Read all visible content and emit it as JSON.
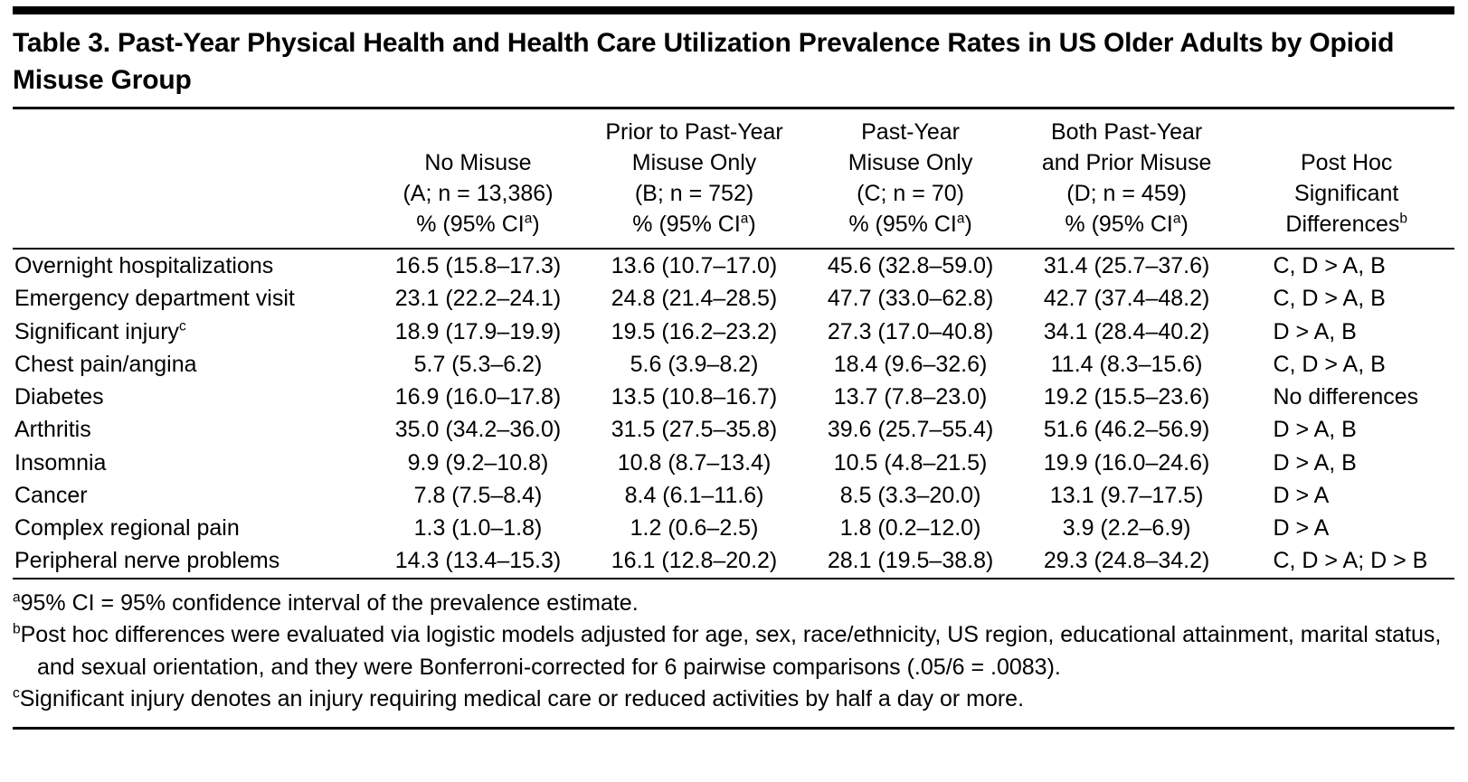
{
  "page": {
    "title": "Table 3. Past-Year Physical Health and Health Care Utilization Prevalence Rates in US Older Adults by Opioid Misuse Group"
  },
  "table": {
    "columns": [
      {
        "lines": [
          "No Misuse",
          "(A; n = 13,386)"
        ],
        "last_line": {
          "text": "% (95% CI",
          "sup": "a",
          "suffix": ")"
        }
      },
      {
        "lines": [
          "Prior to Past-Year",
          "Misuse Only",
          "(B; n = 752)"
        ],
        "last_line": {
          "text": "% (95% CI",
          "sup": "a",
          "suffix": ")"
        }
      },
      {
        "lines": [
          "Past-Year",
          "Misuse Only",
          "(C; n = 70)"
        ],
        "last_line": {
          "text": "% (95% CI",
          "sup": "a",
          "suffix": ")"
        }
      },
      {
        "lines": [
          "Both Past-Year",
          "and Prior Misuse",
          "(D; n = 459)"
        ],
        "last_line": {
          "text": "% (95% CI",
          "sup": "a",
          "suffix": ")"
        }
      },
      {
        "lines": [
          "Post Hoc",
          "Significant"
        ],
        "last_line": {
          "text": "Differences",
          "sup": "b",
          "suffix": ""
        }
      }
    ],
    "rows": [
      {
        "condition": "Overnight hospitalizations",
        "values": [
          "16.5 (15.8–17.3)",
          "13.6 (10.7–17.0)",
          "45.6 (32.8–59.0)",
          "31.4 (25.7–37.6)"
        ],
        "post_hoc": "C, D > A, B"
      },
      {
        "condition": "Emergency department visit",
        "values": [
          "23.1 (22.2–24.1)",
          "24.8 (21.4–28.5)",
          "47.7 (33.0–62.8)",
          "42.7 (37.4–48.2)"
        ],
        "post_hoc": "C, D > A, B"
      },
      {
        "condition": "Significant injury",
        "condition_sup": "c",
        "values": [
          "18.9 (17.9–19.9)",
          "19.5 (16.2–23.2)",
          "27.3 (17.0–40.8)",
          "34.1 (28.4–40.2)"
        ],
        "post_hoc": "D > A, B"
      },
      {
        "condition": "Chest pain/angina",
        "values": [
          "5.7 (5.3–6.2)",
          "5.6 (3.9–8.2)",
          "18.4 (9.6–32.6)",
          "11.4 (8.3–15.6)"
        ],
        "post_hoc": "C, D > A, B"
      },
      {
        "condition": "Diabetes",
        "values": [
          "16.9 (16.0–17.8)",
          "13.5 (10.8–16.7)",
          "13.7 (7.8–23.0)",
          "19.2 (15.5–23.6)"
        ],
        "post_hoc": "No differences"
      },
      {
        "condition": "Arthritis",
        "values": [
          "35.0 (34.2–36.0)",
          "31.5 (27.5–35.8)",
          "39.6 (25.7–55.4)",
          "51.6 (46.2–56.9)"
        ],
        "post_hoc": "D > A, B"
      },
      {
        "condition": "Insomnia",
        "values": [
          "9.9 (9.2–10.8)",
          "10.8 (8.7–13.4)",
          "10.5 (4.8–21.5)",
          "19.9 (16.0–24.6)"
        ],
        "post_hoc": "D > A, B"
      },
      {
        "condition": "Cancer",
        "values": [
          "7.8 (7.5–8.4)",
          "8.4 (6.1–11.6)",
          "8.5 (3.3–20.0)",
          "13.1 (9.7–17.5)"
        ],
        "post_hoc": "D > A"
      },
      {
        "condition": "Complex regional pain",
        "values": [
          "1.3 (1.0–1.8)",
          "1.2 (0.6–2.5)",
          "1.8 (0.2–12.0)",
          "3.9 (2.2–6.9)"
        ],
        "post_hoc": "D > A"
      },
      {
        "condition": "Peripheral nerve problems",
        "values": [
          "14.3 (13.4–15.3)",
          "16.1 (12.8–20.2)",
          "28.1 (19.5–38.8)",
          "29.3 (24.8–34.2)"
        ],
        "post_hoc": "C, D > A; D > B"
      }
    ]
  },
  "footnotes": [
    {
      "sup": "a",
      "text": "95% CI = 95% confidence interval of the prevalence estimate."
    },
    {
      "sup": "b",
      "text": "Post hoc differences were evaluated via logistic models adjusted for age, sex, race/ethnicity, US region, educational attainment, marital status, and sexual orientation, and they were Bonferroni-corrected for 6 pairwise comparisons (.05/6 = .0083)."
    },
    {
      "sup": "c",
      "text": "Significant injury denotes an injury requiring medical care or reduced activities by half a day or more."
    }
  ]
}
